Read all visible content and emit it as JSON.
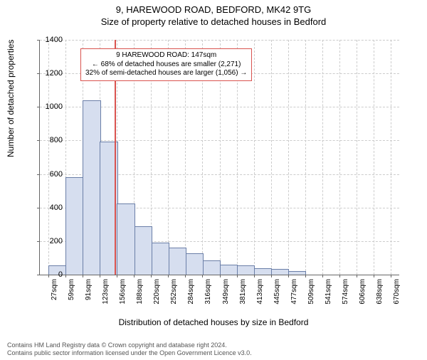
{
  "title_main": "9, HAREWOOD ROAD, BEDFORD, MK42 9TG",
  "title_sub": "Size of property relative to detached houses in Bedford",
  "y_axis_label": "Number of detached properties",
  "x_axis_label": "Distribution of detached houses by size in Bedford",
  "chart": {
    "type": "histogram",
    "bar_fill": "#d6deef",
    "bar_stroke": "#6b7fa8",
    "grid_color": "#cccccc",
    "ref_line_color": "#d9534f",
    "ref_line_x_index": 3.85,
    "y_min": 0,
    "y_max": 1400,
    "y_step": 200,
    "x_labels": [
      "27sqm",
      "59sqm",
      "91sqm",
      "123sqm",
      "156sqm",
      "188sqm",
      "220sqm",
      "252sqm",
      "284sqm",
      "316sqm",
      "349sqm",
      "381sqm",
      "413sqm",
      "445sqm",
      "477sqm",
      "509sqm",
      "541sqm",
      "574sqm",
      "606sqm",
      "638sqm",
      "670sqm"
    ],
    "bar_values": [
      50,
      575,
      1035,
      790,
      420,
      285,
      185,
      155,
      125,
      80,
      55,
      50,
      35,
      28,
      15,
      0,
      0,
      0,
      0,
      0
    ]
  },
  "annotation": {
    "border_color": "#d9534f",
    "line1": "9 HAREWOOD ROAD: 147sqm",
    "line2": "← 68% of detached houses are smaller (2,271)",
    "line3": "32% of semi-detached houses are larger (1,056) →"
  },
  "footer_line1": "Contains HM Land Registry data © Crown copyright and database right 2024.",
  "footer_line2": "Contains public sector information licensed under the Open Government Licence v3.0."
}
